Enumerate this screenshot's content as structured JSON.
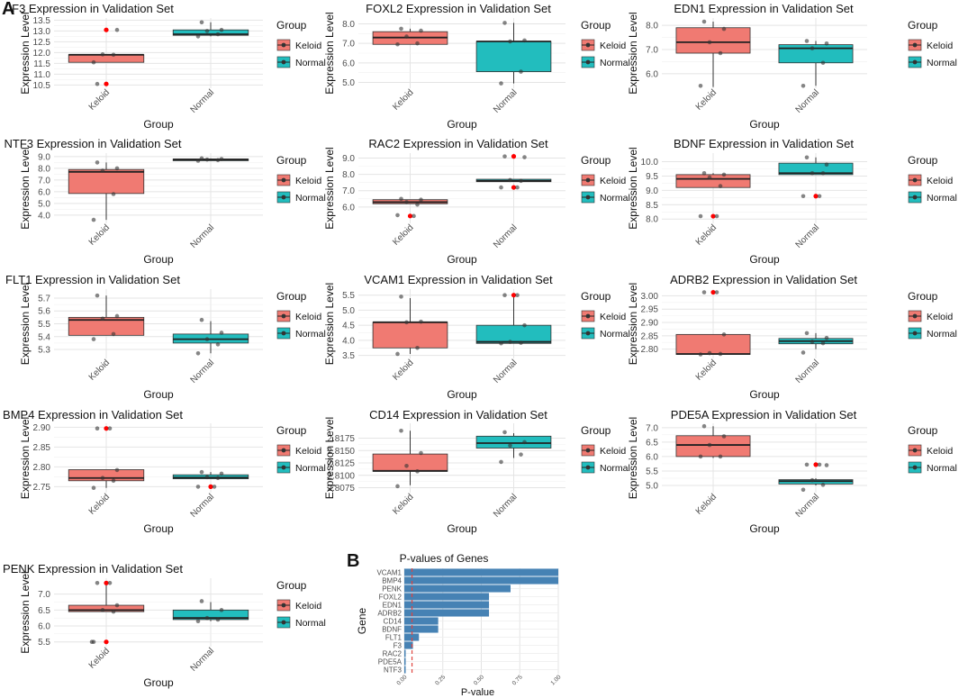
{
  "figure": {
    "panel_a_label": "A",
    "panel_b_label": "B",
    "group_label": "Group",
    "xlabel": "Group",
    "ylabel": "Expression Level",
    "categories": [
      "Keloid",
      "Normal"
    ],
    "colors": {
      "Keloid": "#F07A72",
      "Normal": "#22BDBE",
      "outlier": "#FF0000",
      "bar": "#4682B4",
      "threshold": "#E0443E"
    }
  },
  "chart_data": [
    {
      "type": "boxplot",
      "gene": "F3",
      "title": "F3 Expression in Validation Set",
      "xlabel": "Group",
      "ylabel": "Expression Level",
      "ylim": [
        10.35,
        13.6
      ],
      "yticks": [
        10.5,
        11.0,
        11.5,
        12.0,
        12.5,
        13.0,
        13.5
      ],
      "boxes": [
        {
          "group": "Keloid",
          "q1": 11.55,
          "median": 11.9,
          "q3": 11.9,
          "whisker_low": 11.55,
          "whisker_high": 11.9,
          "outliers": [
            13.05,
            10.55
          ],
          "points": [
            11.55,
            11.9,
            11.92,
            13.05,
            10.55
          ]
        },
        {
          "group": "Normal",
          "q1": 12.8,
          "median": 12.85,
          "q3": 13.05,
          "whisker_low": 12.75,
          "whisker_high": 13.4,
          "outliers": [],
          "points": [
            12.75,
            12.85,
            13.0,
            13.05,
            13.4
          ]
        }
      ]
    },
    {
      "type": "boxplot",
      "gene": "FOXL2",
      "title": "FOXL2 Expression in Validation Set",
      "xlabel": "Group",
      "ylabel": "Expression Level",
      "ylim": [
        4.7,
        8.3
      ],
      "yticks": [
        5,
        6,
        7,
        8
      ],
      "boxes": [
        {
          "group": "Keloid",
          "q1": 6.95,
          "median": 7.3,
          "q3": 7.6,
          "whisker_low": 6.95,
          "whisker_high": 7.75,
          "outliers": [],
          "points": [
            6.95,
            7.0,
            7.35,
            7.65,
            7.75
          ]
        },
        {
          "group": "Normal",
          "q1": 5.55,
          "median": 7.1,
          "q3": 7.1,
          "whisker_low": 4.95,
          "whisker_high": 8.05,
          "outliers": [],
          "points": [
            4.95,
            5.55,
            7.1,
            7.15,
            8.05
          ]
        }
      ]
    },
    {
      "type": "boxplot",
      "gene": "EDN1",
      "title": "EDN1 Expression in Validation Set",
      "xlabel": "Group",
      "ylabel": "Expression Level",
      "ylim": [
        5.4,
        8.3
      ],
      "yticks": [
        6,
        7,
        8
      ],
      "boxes": [
        {
          "group": "Keloid",
          "q1": 6.85,
          "median": 7.3,
          "q3": 7.9,
          "whisker_low": 5.45,
          "whisker_high": 8.15,
          "outliers": [],
          "points": [
            5.5,
            6.85,
            7.3,
            7.85,
            8.15
          ]
        },
        {
          "group": "Normal",
          "q1": 6.45,
          "median": 7.05,
          "q3": 7.2,
          "whisker_low": 5.5,
          "whisker_high": 7.35,
          "outliers": [],
          "points": [
            5.5,
            6.45,
            7.05,
            7.25,
            7.35
          ]
        }
      ]
    },
    {
      "type": "boxplot",
      "gene": "NTF3",
      "title": "NTF3 Expression in Validation Set",
      "xlabel": "Group",
      "ylabel": "Expression Level",
      "ylim": [
        3.3,
        9.3
      ],
      "yticks": [
        4,
        5,
        6,
        7,
        8,
        9
      ],
      "boxes": [
        {
          "group": "Keloid",
          "q1": 5.85,
          "median": 7.7,
          "q3": 7.9,
          "whisker_low": 3.6,
          "whisker_high": 8.5,
          "outliers": [],
          "points": [
            3.6,
            5.8,
            7.8,
            8.0,
            8.5
          ]
        },
        {
          "group": "Normal",
          "q1": 8.65,
          "median": 8.75,
          "q3": 8.8,
          "whisker_low": 8.65,
          "whisker_high": 8.85,
          "outliers": [],
          "points": [
            8.65,
            8.7,
            8.75,
            8.8,
            8.85
          ]
        }
      ]
    },
    {
      "type": "boxplot",
      "gene": "RAC2",
      "title": "RAC2 Expression in Validation Set",
      "xlabel": "Group",
      "ylabel": "Expression Level",
      "ylim": [
        5.0,
        9.3
      ],
      "yticks": [
        6,
        7,
        8,
        9
      ],
      "boxes": [
        {
          "group": "Keloid",
          "q1": 6.2,
          "median": 6.3,
          "q3": 6.45,
          "whisker_low": 6.2,
          "whisker_high": 6.45,
          "outliers": [
            5.45
          ],
          "points": [
            5.5,
            6.15,
            6.3,
            6.45,
            6.5,
            5.45
          ]
        },
        {
          "group": "Normal",
          "q1": 7.55,
          "median": 7.6,
          "q3": 7.7,
          "whisker_low": 7.55,
          "whisker_high": 7.7,
          "outliers": [
            9.1,
            7.2
          ],
          "points": [
            7.2,
            7.6,
            7.65,
            9.05,
            9.1,
            7.2
          ]
        }
      ]
    },
    {
      "type": "boxplot",
      "gene": "BDNF",
      "title": "BDNF Expression in Validation Set",
      "xlabel": "Group",
      "ylabel": "Expression Level",
      "ylim": [
        7.85,
        10.3
      ],
      "yticks": [
        8.0,
        8.5,
        9.0,
        9.5,
        10.0
      ],
      "boxes": [
        {
          "group": "Keloid",
          "q1": 9.1,
          "median": 9.4,
          "q3": 9.55,
          "whisker_low": 9.1,
          "whisker_high": 9.6,
          "outliers": [
            8.1
          ],
          "points": [
            8.1,
            9.15,
            9.45,
            9.55,
            9.6,
            8.1
          ]
        },
        {
          "group": "Normal",
          "q1": 9.55,
          "median": 9.6,
          "q3": 9.95,
          "whisker_low": 9.55,
          "whisker_high": 10.15,
          "outliers": [
            8.8
          ],
          "points": [
            8.8,
            9.6,
            9.6,
            9.9,
            10.15,
            8.8
          ]
        }
      ]
    },
    {
      "type": "boxplot",
      "gene": "FLT1",
      "title": "FLT1 Expression in Validation Set",
      "xlabel": "Group",
      "ylabel": "Expression Level",
      "ylim": [
        5.23,
        5.77
      ],
      "yticks": [
        5.3,
        5.4,
        5.5,
        5.6,
        5.7
      ],
      "boxes": [
        {
          "group": "Keloid",
          "q1": 5.41,
          "median": 5.53,
          "q3": 5.55,
          "whisker_low": 5.41,
          "whisker_high": 5.72,
          "outliers": [],
          "points": [
            5.38,
            5.42,
            5.54,
            5.56,
            5.72
          ]
        },
        {
          "group": "Normal",
          "q1": 5.35,
          "median": 5.38,
          "q3": 5.42,
          "whisker_low": 5.27,
          "whisker_high": 5.52,
          "outliers": [],
          "points": [
            5.27,
            5.34,
            5.38,
            5.43,
            5.53
          ]
        }
      ]
    },
    {
      "type": "boxplot",
      "gene": "VCAM1",
      "title": "VCAM1 Expression in Validation Set",
      "xlabel": "Group",
      "ylabel": "Expression Level",
      "ylim": [
        3.4,
        5.7
      ],
      "yticks": [
        3.5,
        4.0,
        4.5,
        5.0,
        5.5
      ],
      "boxes": [
        {
          "group": "Keloid",
          "q1": 3.75,
          "median": 4.6,
          "q3": 4.6,
          "whisker_low": 3.55,
          "whisker_high": 5.4,
          "outliers": [],
          "points": [
            3.55,
            3.75,
            4.6,
            4.62,
            5.45
          ]
        },
        {
          "group": "Normal",
          "q1": 3.9,
          "median": 3.95,
          "q3": 4.5,
          "whisker_low": 3.9,
          "whisker_high": 5.5,
          "outliers": [
            5.5
          ],
          "points": [
            3.9,
            3.92,
            3.95,
            4.5,
            5.5,
            5.5
          ]
        }
      ]
    },
    {
      "type": "boxplot",
      "gene": "ADRB2",
      "title": "ADRB2 Expression in Validation Set",
      "xlabel": "Group",
      "ylabel": "Expression Level",
      "ylim": [
        2.765,
        3.025
      ],
      "yticks": [
        2.8,
        2.85,
        2.9,
        2.95,
        3.0
      ],
      "boxes": [
        {
          "group": "Keloid",
          "q1": 2.78,
          "median": 2.782,
          "q3": 2.855,
          "whisker_low": 2.78,
          "whisker_high": 2.855,
          "outliers": [
            3.013
          ],
          "points": [
            2.78,
            2.782,
            2.785,
            2.855,
            3.013,
            3.013
          ]
        },
        {
          "group": "Normal",
          "q1": 2.82,
          "median": 2.83,
          "q3": 2.84,
          "whisker_low": 2.8,
          "whisker_high": 2.86,
          "outliers": [],
          "points": [
            2.787,
            2.822,
            2.828,
            2.842,
            2.86
          ]
        }
      ]
    },
    {
      "type": "boxplot",
      "gene": "BMP4",
      "title": "BMP4 Expression in Validation Set",
      "xlabel": "Group",
      "ylabel": "Expression Level",
      "ylim": [
        2.735,
        2.91
      ],
      "yticks": [
        2.75,
        2.8,
        2.85,
        2.9
      ],
      "boxes": [
        {
          "group": "Keloid",
          "q1": 2.765,
          "median": 2.772,
          "q3": 2.793,
          "whisker_low": 2.747,
          "whisker_high": 2.793,
          "outliers": [
            2.897
          ],
          "points": [
            2.747,
            2.765,
            2.772,
            2.792,
            2.897,
            2.897
          ]
        },
        {
          "group": "Normal",
          "q1": 2.77,
          "median": 2.773,
          "q3": 2.78,
          "whisker_low": 2.77,
          "whisker_high": 2.787,
          "outliers": [
            2.75
          ],
          "points": [
            2.75,
            2.772,
            2.774,
            2.783,
            2.787,
            2.75
          ]
        }
      ]
    },
    {
      "type": "boxplot",
      "gene": "CD14",
      "title": "CD14 Expression in Validation Set",
      "xlabel": "Group",
      "ylabel": "Expression Level",
      "ylim": [
        2.8065,
        2.8205
      ],
      "yticks": [
        2.8075,
        2.81,
        2.8125,
        2.815,
        2.8175
      ],
      "boxes": [
        {
          "group": "Keloid",
          "q1": 2.8108,
          "median": 2.8109,
          "q3": 2.8143,
          "whisker_low": 2.808,
          "whisker_high": 2.819,
          "outliers": [],
          "points": [
            2.8078,
            2.8108,
            2.8119,
            2.8145,
            2.819
          ]
        },
        {
          "group": "Normal",
          "q1": 2.8155,
          "median": 2.8165,
          "q3": 2.8179,
          "whisker_low": 2.8135,
          "whisker_high": 2.8185,
          "outliers": [],
          "points": [
            2.8127,
            2.8142,
            2.816,
            2.8167,
            2.8187
          ]
        }
      ]
    },
    {
      "type": "boxplot",
      "gene": "PDE5A",
      "title": "PDE5A Expression in Validation Set",
      "xlabel": "Group",
      "ylabel": "Expression Level",
      "ylim": [
        4.75,
        7.15
      ],
      "yticks": [
        5.0,
        5.5,
        6.0,
        6.5,
        7.0
      ],
      "boxes": [
        {
          "group": "Keloid",
          "q1": 6.0,
          "median": 6.4,
          "q3": 6.72,
          "whisker_low": 5.95,
          "whisker_high": 7.05,
          "outliers": [],
          "points": [
            6.0,
            6.0,
            6.4,
            6.7,
            7.05
          ]
        },
        {
          "group": "Normal",
          "q1": 5.05,
          "median": 5.15,
          "q3": 5.2,
          "whisker_low": 5.0,
          "whisker_high": 5.25,
          "outliers": [
            5.72
          ],
          "points": [
            4.85,
            5.02,
            5.18,
            5.7,
            5.72,
            5.72
          ]
        }
      ]
    },
    {
      "type": "boxplot",
      "gene": "PENK",
      "title": "PENK Expression in Validation Set",
      "xlabel": "Group",
      "ylabel": "Expression Level",
      "ylim": [
        5.35,
        7.5
      ],
      "yticks": [
        5.5,
        6.0,
        6.5,
        7.0
      ],
      "boxes": [
        {
          "group": "Keloid",
          "q1": 6.45,
          "median": 6.5,
          "q3": 6.65,
          "whisker_low": 6.45,
          "whisker_high": 7.35,
          "outliers": [
            7.35,
            5.5
          ],
          "points": [
            5.5,
            6.45,
            6.5,
            6.65,
            7.35,
            7.35,
            5.5
          ]
        },
        {
          "group": "Normal",
          "q1": 6.2,
          "median": 6.25,
          "q3": 6.5,
          "whisker_low": 6.15,
          "whisker_high": 6.75,
          "outliers": [],
          "points": [
            6.15,
            6.2,
            6.25,
            6.5,
            6.78
          ]
        }
      ]
    },
    {
      "type": "bar",
      "orientation": "horizontal",
      "title": "P-values of Genes",
      "xlabel": "P-value",
      "ylabel": "Gene",
      "categories": [
        "VCAM1",
        "BMP4",
        "PENK",
        "FOXL2",
        "EDN1",
        "ADRB2",
        "CD14",
        "BDNF",
        "FLT1",
        "F3",
        "RAC2",
        "PDE5A",
        "NTF3"
      ],
      "values": [
        1.0,
        1.0,
        0.69,
        0.55,
        0.55,
        0.55,
        0.22,
        0.22,
        0.095,
        0.056,
        0.008,
        0.008,
        0.008
      ],
      "xlim": [
        0,
        1.0
      ],
      "xticks": [
        "0.00",
        "0.25",
        "0.50",
        "0.75",
        "1.00"
      ],
      "threshold": 0.05
    }
  ]
}
